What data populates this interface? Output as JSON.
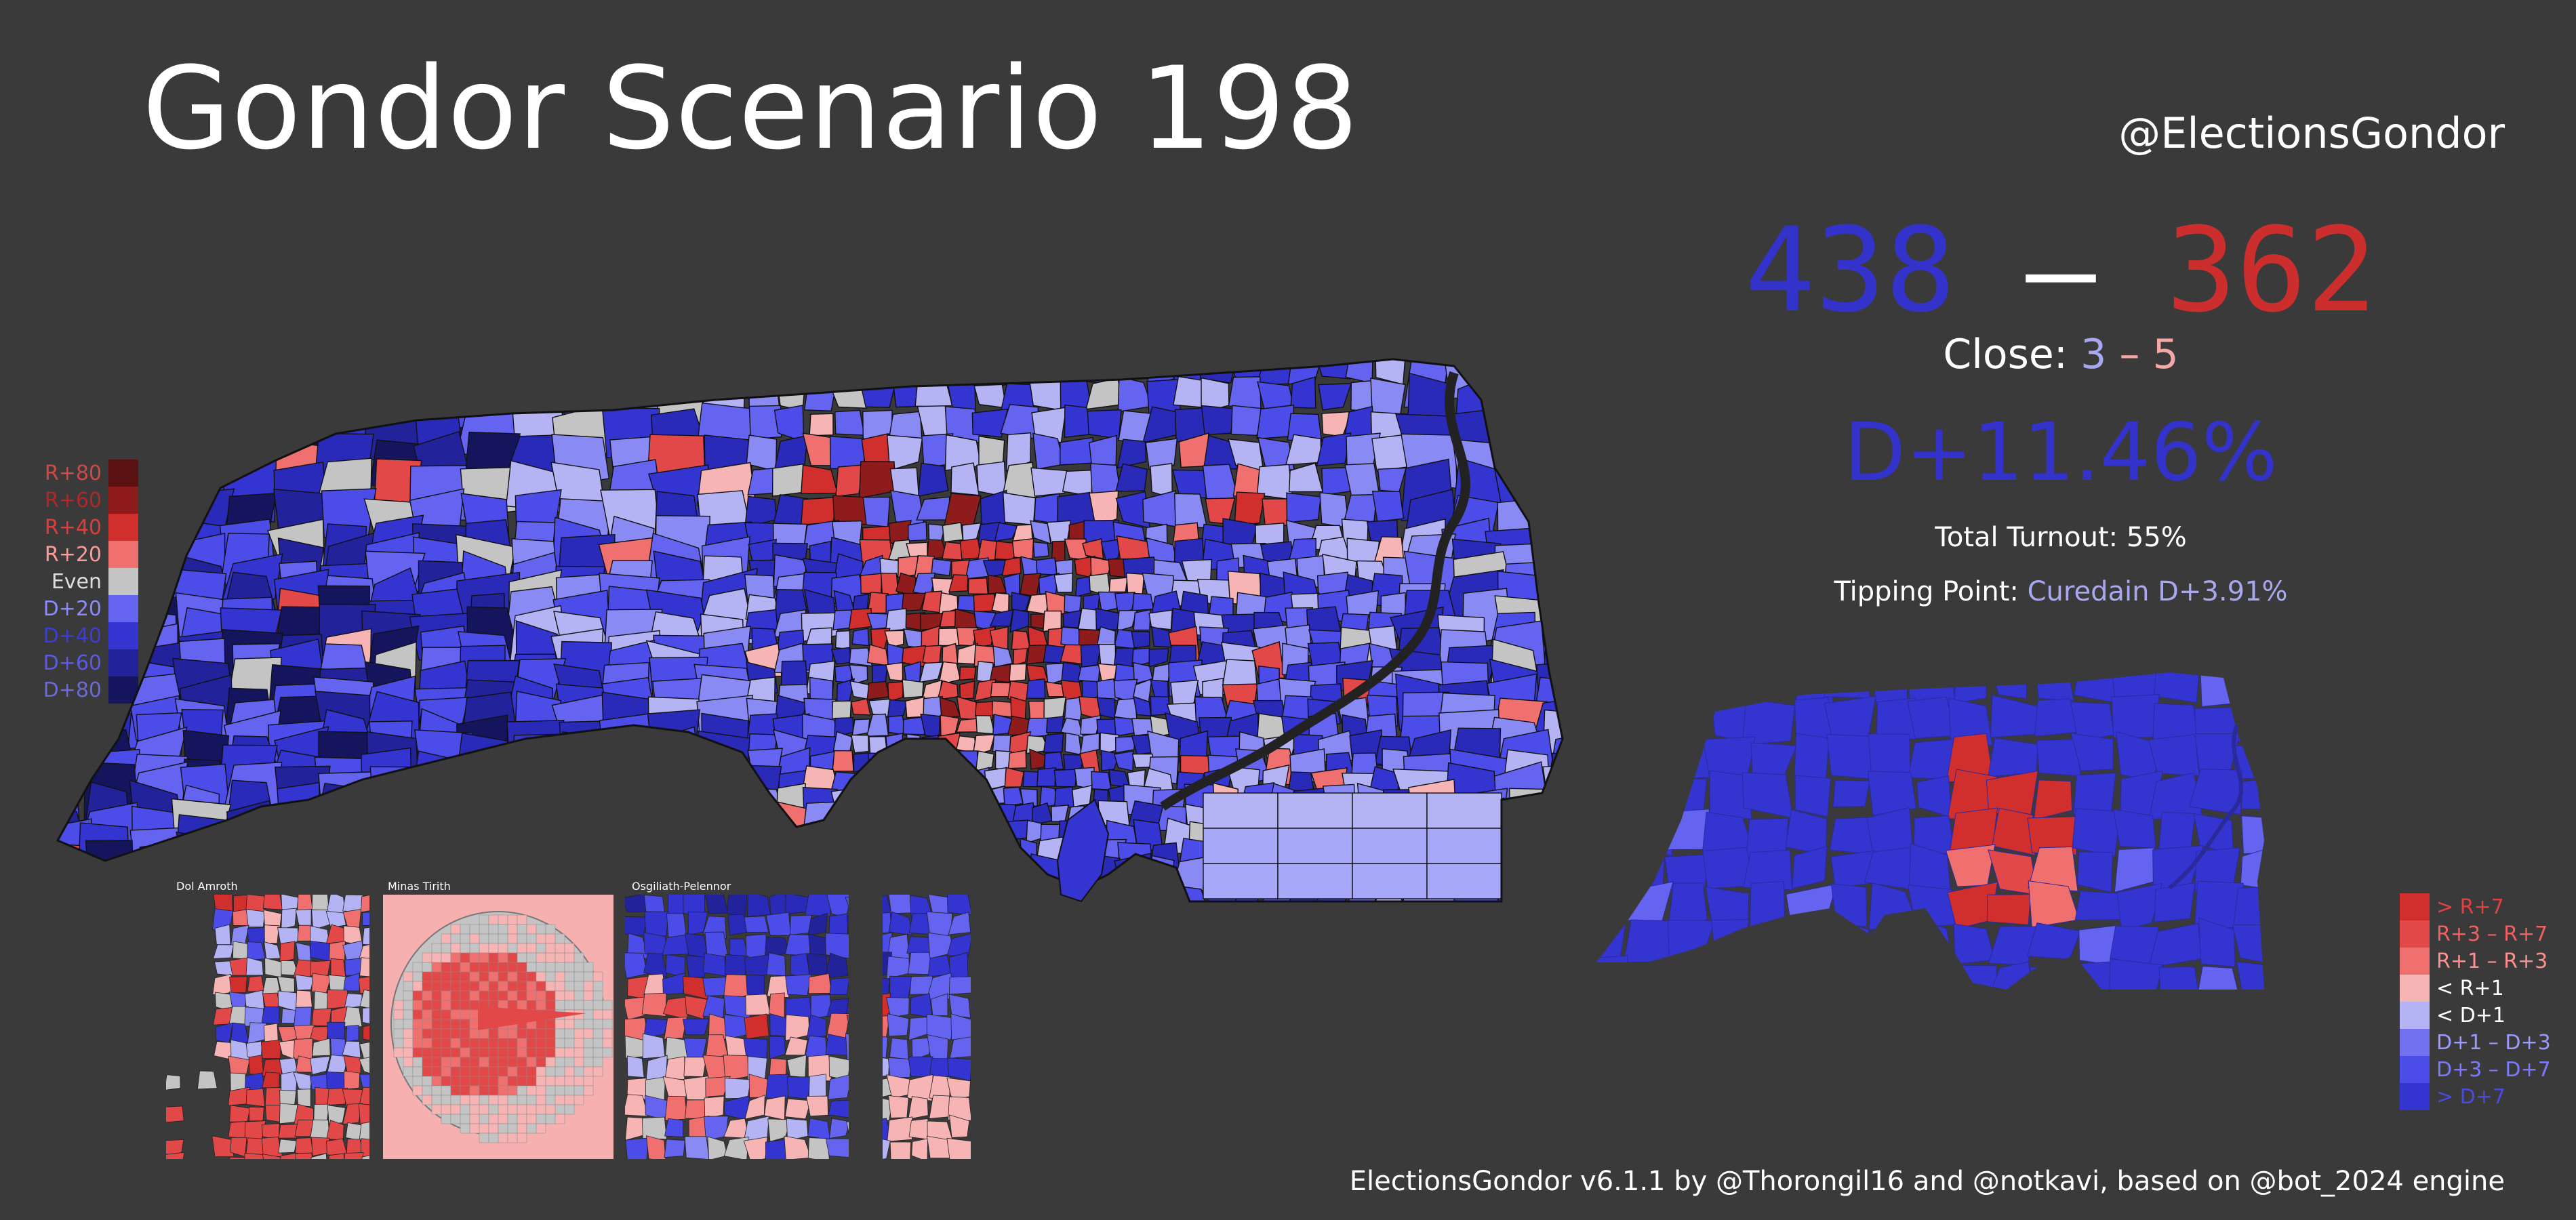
{
  "title": "Gondor Scenario 198",
  "handle": "@ElectionsGondor",
  "score": {
    "dem": "438",
    "dash": "–",
    "rep": "362"
  },
  "close": {
    "label": "Close:",
    "dem": "3",
    "dash": "–",
    "rep": "5"
  },
  "national_margin": "D+11.46%",
  "turnout": "Total Turnout: 55%",
  "tipping_point": {
    "label": "Tipping Point:",
    "value": "Curedain D+3.91%"
  },
  "footer": "ElectionsGondor v6.1.1 by @Thorongil16 and @notkavi, based on @bot_2024 engine",
  "legend_left": [
    {
      "label": "R+80",
      "color": "#5a1212",
      "text": "#d04848"
    },
    {
      "label": "R+60",
      "color": "#8f1c1c",
      "text": "#b02828"
    },
    {
      "label": "R+40",
      "color": "#d12e2e",
      "text": "#e03c3c"
    },
    {
      "label": "R+20",
      "color": "#f07070",
      "text": "#ff9a9a"
    },
    {
      "label": "Even",
      "color": "#c4c4c4",
      "text": "#dddddd"
    },
    {
      "label": "D+20",
      "color": "#6464f0",
      "text": "#8a8aff"
    },
    {
      "label": "D+40",
      "color": "#3434d0",
      "text": "#3c3cd8"
    },
    {
      "label": "D+60",
      "color": "#22229a",
      "text": "#5a5ae6"
    },
    {
      "label": "D+80",
      "color": "#15155e",
      "text": "#6a6ad8"
    }
  ],
  "legend_right": [
    {
      "label": "> R+7",
      "color": "#d12e2e",
      "text": "#e04040"
    },
    {
      "label": "R+3 – R+7",
      "color": "#e34848",
      "text": "#f06060"
    },
    {
      "label": "R+1 – R+3",
      "color": "#f07070",
      "text": "#ff9090"
    },
    {
      "label": "< R+1",
      "color": "#f6b4b4",
      "text": "#ffffff"
    },
    {
      "label": "< D+1",
      "color": "#b4b4f4",
      "text": "#ffffff"
    },
    {
      "label": "D+1 – D+3",
      "color": "#7272f0",
      "text": "#9a9aff"
    },
    {
      "label": "D+3 – D+7",
      "color": "#4c4ce8",
      "text": "#7a7aff"
    },
    {
      "label": "> D+7",
      "color": "#3434d0",
      "text": "#4a4ae0"
    }
  ],
  "insets": [
    {
      "label": "Dol Amroth"
    },
    {
      "label": "Minas Tirith"
    },
    {
      "label": "Osgiliath-Pelennor"
    }
  ],
  "colors": {
    "background": "#3a3a3a",
    "dem": "#3333cc",
    "rep": "#cc2e2e",
    "dem_light": "#a8a8f0",
    "rep_light": "#f5a8a8"
  }
}
